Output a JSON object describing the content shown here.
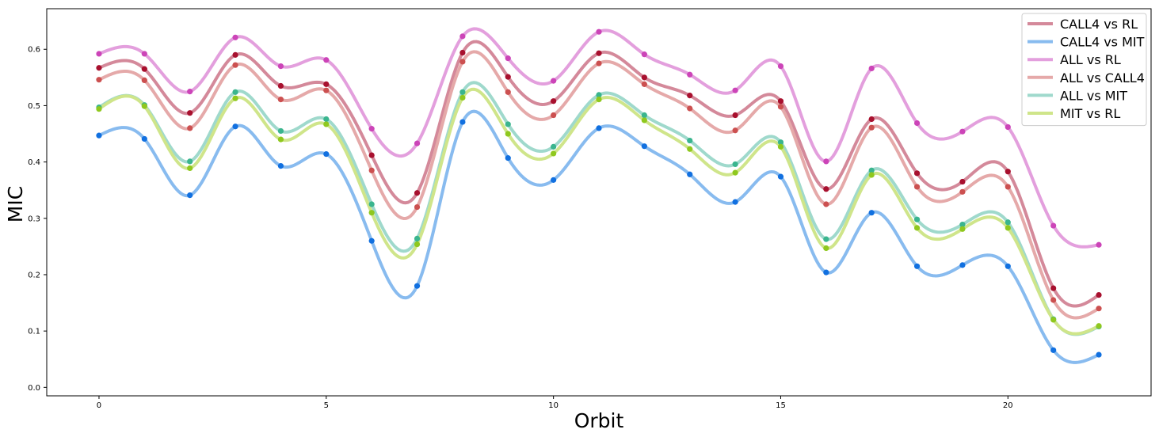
{
  "chart_data": {
    "type": "line",
    "xlabel": "Orbit",
    "ylabel": "MIC",
    "x": [
      0,
      1,
      2,
      3,
      4,
      5,
      6,
      7,
      8,
      9,
      10,
      11,
      12,
      13,
      14,
      15,
      16,
      17,
      18,
      19,
      20,
      21,
      22
    ],
    "xlim": [
      -1.15,
      23.15
    ],
    "ylim": [
      -0.015,
      0.672
    ],
    "xticks": [
      0,
      5,
      10,
      15,
      20
    ],
    "yticks": [
      0.0,
      0.1,
      0.2,
      0.3,
      0.4,
      0.5,
      0.6
    ],
    "ytick_labels": [
      "0.0",
      "0.1",
      "0.2",
      "0.3",
      "0.4",
      "0.5",
      "0.6"
    ],
    "legend_position": "top-right",
    "grid": false,
    "series": [
      {
        "name": "CALL4 vs RL",
        "line_color": "#d4899a",
        "point_color": "#a8102e",
        "values": [
          0.567,
          0.565,
          0.487,
          0.59,
          0.535,
          0.538,
          0.412,
          0.345,
          0.594,
          0.551,
          0.508,
          0.593,
          0.55,
          0.518,
          0.483,
          0.508,
          0.352,
          0.476,
          0.38,
          0.365,
          0.383,
          0.176,
          0.164
        ]
      },
      {
        "name": "CALL4 vs MIT",
        "line_color": "#88bbef",
        "point_color": "#1170e0",
        "values": [
          0.447,
          0.441,
          0.341,
          0.463,
          0.393,
          0.414,
          0.26,
          0.18,
          0.471,
          0.407,
          0.368,
          0.46,
          0.428,
          0.378,
          0.329,
          0.374,
          0.204,
          0.31,
          0.215,
          0.217,
          0.215,
          0.066,
          0.058
        ]
      },
      {
        "name": "ALL vs RL",
        "line_color": "#e39fdd",
        "point_color": "#cc44b8",
        "values": [
          0.592,
          0.592,
          0.525,
          0.621,
          0.57,
          0.581,
          0.459,
          0.433,
          0.623,
          0.584,
          0.544,
          0.631,
          0.591,
          0.555,
          0.527,
          0.57,
          0.401,
          0.566,
          0.469,
          0.454,
          0.462,
          0.287,
          0.253
        ]
      },
      {
        "name": "ALL vs CALL4",
        "line_color": "#e5a9a9",
        "point_color": "#cc5050",
        "values": [
          0.546,
          0.545,
          0.46,
          0.572,
          0.511,
          0.527,
          0.385,
          0.32,
          0.578,
          0.524,
          0.483,
          0.575,
          0.538,
          0.495,
          0.456,
          0.498,
          0.325,
          0.461,
          0.356,
          0.347,
          0.356,
          0.155,
          0.14
        ]
      },
      {
        "name": "ALL vs MIT",
        "line_color": "#9fd9cc",
        "point_color": "#3ab58e",
        "values": [
          0.497,
          0.501,
          0.401,
          0.524,
          0.455,
          0.476,
          0.325,
          0.264,
          0.524,
          0.467,
          0.427,
          0.519,
          0.483,
          0.438,
          0.396,
          0.435,
          0.263,
          0.385,
          0.298,
          0.289,
          0.293,
          0.121,
          0.108
        ]
      },
      {
        "name": "MIT vs RL",
        "line_color": "#cfe58a",
        "point_color": "#8fc81e",
        "values": [
          0.494,
          0.499,
          0.389,
          0.513,
          0.44,
          0.467,
          0.31,
          0.254,
          0.514,
          0.45,
          0.415,
          0.511,
          0.474,
          0.423,
          0.381,
          0.427,
          0.247,
          0.377,
          0.283,
          0.281,
          0.283,
          0.12,
          0.109
        ]
      }
    ]
  }
}
